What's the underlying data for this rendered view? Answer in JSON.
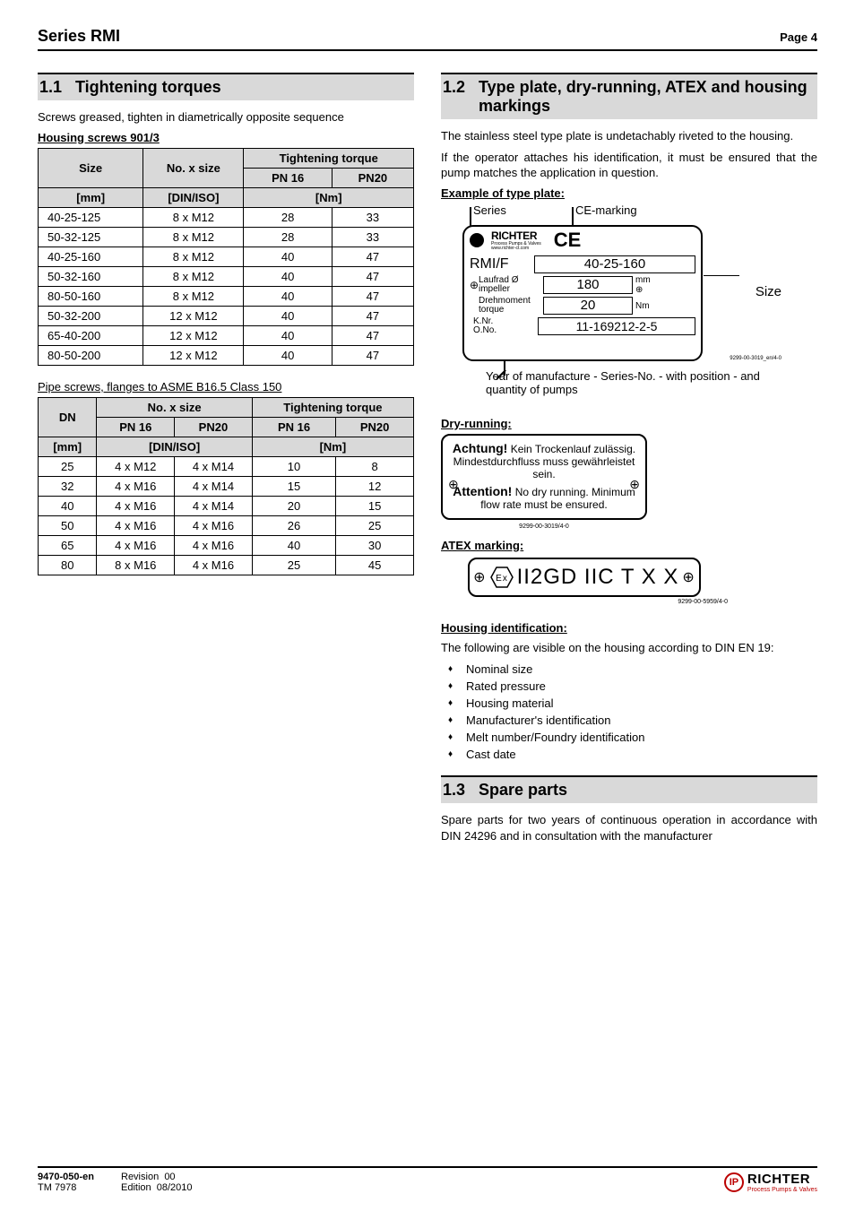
{
  "header": {
    "series": "Series RMI",
    "page": "Page 4"
  },
  "left": {
    "sec11": {
      "num": "1.1",
      "title": "Tightening torques"
    },
    "intro": "Screws greased, tighten in diametrically opposite sequence",
    "table1": {
      "caption": "Housing screws 901/3",
      "head": {
        "size": "Size",
        "no": "No. x size",
        "torque": "Tightening torque",
        "pn16": "PN 16",
        "pn20": "PN20",
        "mm": "[mm]",
        "diniso": "[DIN/ISO]",
        "nm": "[Nm]"
      },
      "rows": [
        {
          "size": "40-25-125",
          "no": "8 x M12",
          "pn16": "28",
          "pn20": "33"
        },
        {
          "size": "50-32-125",
          "no": "8 x M12",
          "pn16": "28",
          "pn20": "33"
        },
        {
          "size": "40-25-160",
          "no": "8 x M12",
          "pn16": "40",
          "pn20": "47"
        },
        {
          "size": "50-32-160",
          "no": "8 x M12",
          "pn16": "40",
          "pn20": "47"
        },
        {
          "size": "80-50-160",
          "no": "8 x M12",
          "pn16": "40",
          "pn20": "47"
        },
        {
          "size": "50-32-200",
          "no": "12 x M12",
          "pn16": "40",
          "pn20": "47"
        },
        {
          "size": "65-40-200",
          "no": "12 x M12",
          "pn16": "40",
          "pn20": "47"
        },
        {
          "size": "80-50-200",
          "no": "12 x M12",
          "pn16": "40",
          "pn20": "47"
        }
      ]
    },
    "table2": {
      "caption": "Pipe screws, flanges to ASME B16.5 Class 150",
      "head": {
        "dn": "DN",
        "no": "No. x size",
        "torque": "Tightening torque",
        "pn16": "PN 16",
        "pn20": "PN20",
        "mm": "[mm]",
        "diniso": "[DIN/ISO]",
        "nm": "[Nm]"
      },
      "rows": [
        {
          "dn": "25",
          "no16": "4 x M12",
          "no20": "4 x M14",
          "t16": "10",
          "t20": "8"
        },
        {
          "dn": "32",
          "no16": "4 x M16",
          "no20": "4 x M14",
          "t16": "15",
          "t20": "12"
        },
        {
          "dn": "40",
          "no16": "4 x M16",
          "no20": "4 x M14",
          "t16": "20",
          "t20": "15"
        },
        {
          "dn": "50",
          "no16": "4 x M16",
          "no20": "4 x M16",
          "t16": "26",
          "t20": "25"
        },
        {
          "dn": "65",
          "no16": "4 x M16",
          "no20": "4 x M16",
          "t16": "40",
          "t20": "30"
        },
        {
          "dn": "80",
          "no16": "8 x M16",
          "no20": "4 x M16",
          "t16": "25",
          "t20": "45"
        }
      ]
    }
  },
  "right": {
    "sec12": {
      "num": "1.2",
      "title": "Type plate, dry-running, ATEX and housing markings"
    },
    "p1": "The stainless steel type plate is undetachably riveted to the housing.",
    "p2": "If the operator attaches his identification, it must be ensured that the pump matches the application in question.",
    "example_lbl": "Example of type plate:",
    "typeplate": {
      "series_lbl": "Series",
      "ce_lbl": "CE-marking",
      "size_lbl": "Size",
      "brand": "RICHTER",
      "brand_sub": "Process Pumps & Valves",
      "brand_url": "www.richter-ct.com",
      "row1_label": "RMI/F",
      "row1_val": "40-25-160",
      "row2_label_de": "Laufrad",
      "row2_label_en": "impeller",
      "row2_dia": "Ø",
      "row2_val": "180",
      "row2_unit": "mm ⊕",
      "row3_label_de": "Drehmoment",
      "row3_label_en": "torque",
      "row3_val": "20",
      "row3_unit": "Nm",
      "row4_label_de": "K.Nr.",
      "row4_label_en": "O.No.",
      "row4_val": "11-169212-2-5",
      "footer": "Year of manufacture - Series-No. - with position - and quantity of pumps",
      "code": "9299-00-3019_en/4-0"
    },
    "dry_lbl": "Dry-running:",
    "dry": {
      "achtung": "Achtung!",
      "de": "Kein Trockenlauf zulässig. Mindestdurchfluss muss gewährleistet sein.",
      "attention": "Attention!",
      "en": "No dry running. Minimum flow rate must be ensured.",
      "code": "9299-00-3019/4-0"
    },
    "atex_lbl": "ATEX marking:",
    "atex": {
      "text": "II2GD IIC T X X",
      "code": "9299-00-5959/4-0"
    },
    "housing_lbl": "Housing identification:",
    "housing_p": "The following are visible on the housing according to DIN EN 19:",
    "housing_list": [
      "Nominal size",
      "Rated pressure",
      "Housing material",
      "Manufacturer's identification",
      "Melt number/Foundry identification",
      "Cast date"
    ],
    "sec13": {
      "num": "1.3",
      "title": "Spare parts"
    },
    "spare_p": "Spare parts for two years of continuous operation in accordance with DIN 24296 and in consultation with the manufacturer"
  },
  "footer": {
    "doc": "9470-050-en",
    "tm": "TM 7978",
    "rev_lbl": "Revision",
    "rev": "00",
    "ed_lbl": "Edition",
    "ed": "08/2010",
    "brand": "RICHTER",
    "brand_sub": "Process Pumps & Valves"
  }
}
